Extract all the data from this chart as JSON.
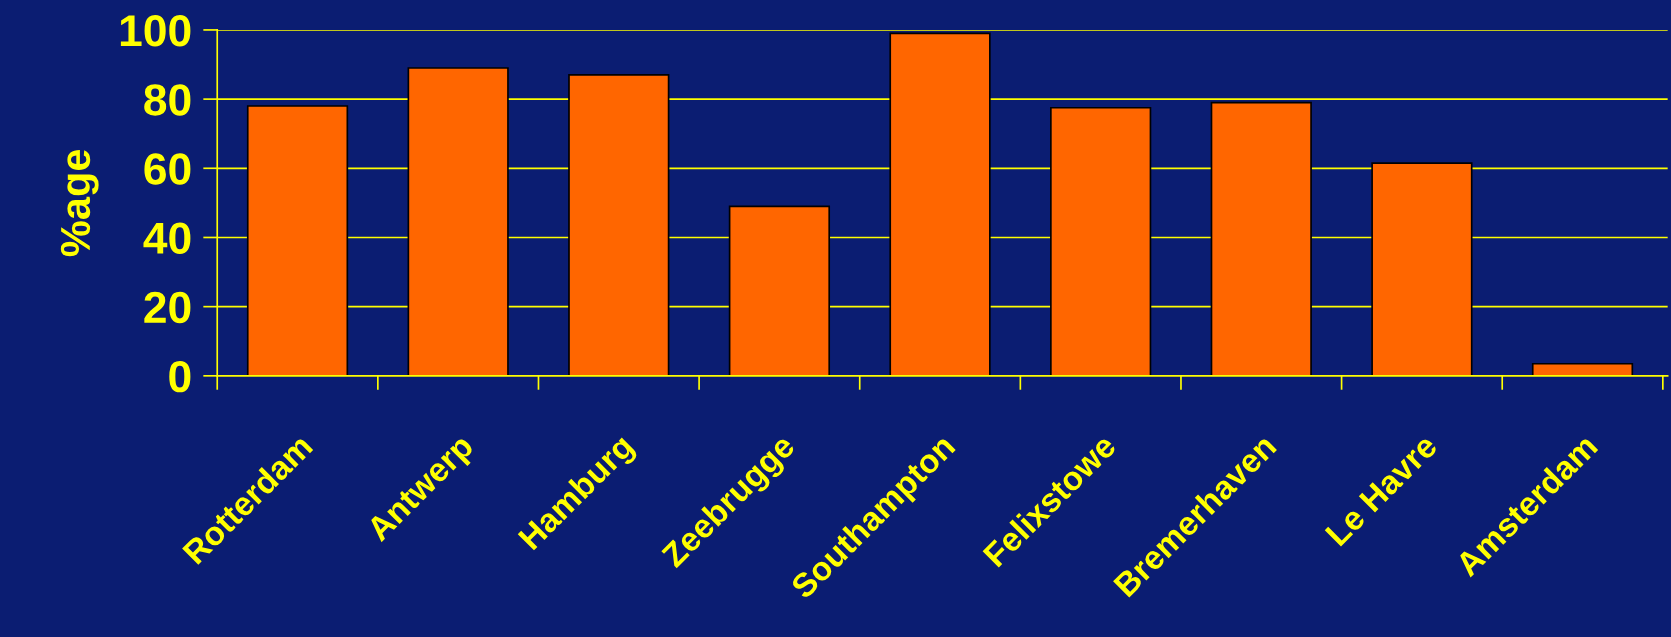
{
  "chart_data": {
    "type": "bar",
    "ylabel": "%age",
    "categories": [
      "Rotterdam",
      "Antwerp",
      "Hamburg",
      "Zeebrugge",
      "Southampton",
      "Felixstowe",
      "Bremerhaven",
      "Le Havre",
      "Amsterdam"
    ],
    "values": [
      78,
      89,
      87,
      49,
      99,
      77.5,
      79,
      61.5,
      3.5
    ],
    "color": "#ff6600",
    "ylim": [
      0,
      100
    ],
    "yticks": [
      0,
      20,
      40,
      60,
      80,
      100
    ],
    "grid": "y"
  }
}
